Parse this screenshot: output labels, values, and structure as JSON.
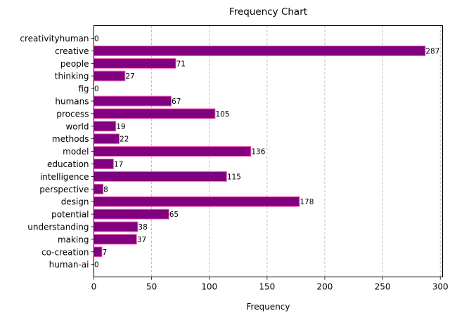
{
  "chart_data": {
    "type": "bar",
    "orientation": "horizontal",
    "title": "Frequency Chart",
    "xlabel": "Frequency",
    "ylabel": "",
    "categories": [
      "creativityhuman",
      "creative",
      "people",
      "thinking",
      "fig",
      "humans",
      "process",
      "world",
      "methods",
      "model",
      "education",
      "intelligence",
      "perspective",
      "design",
      "potential",
      "understanding",
      "making",
      "co-creation",
      "human-ai"
    ],
    "values": [
      0,
      287,
      71,
      27,
      0,
      67,
      105,
      19,
      22,
      136,
      17,
      115,
      8,
      178,
      65,
      38,
      37,
      7,
      0
    ],
    "xlim": [
      0,
      302
    ],
    "xticks": [
      0,
      50,
      100,
      150,
      200,
      250,
      300
    ],
    "grid": "x-dashed",
    "bar_color": "#800080",
    "bar_edge_color": "#ff69b4"
  }
}
